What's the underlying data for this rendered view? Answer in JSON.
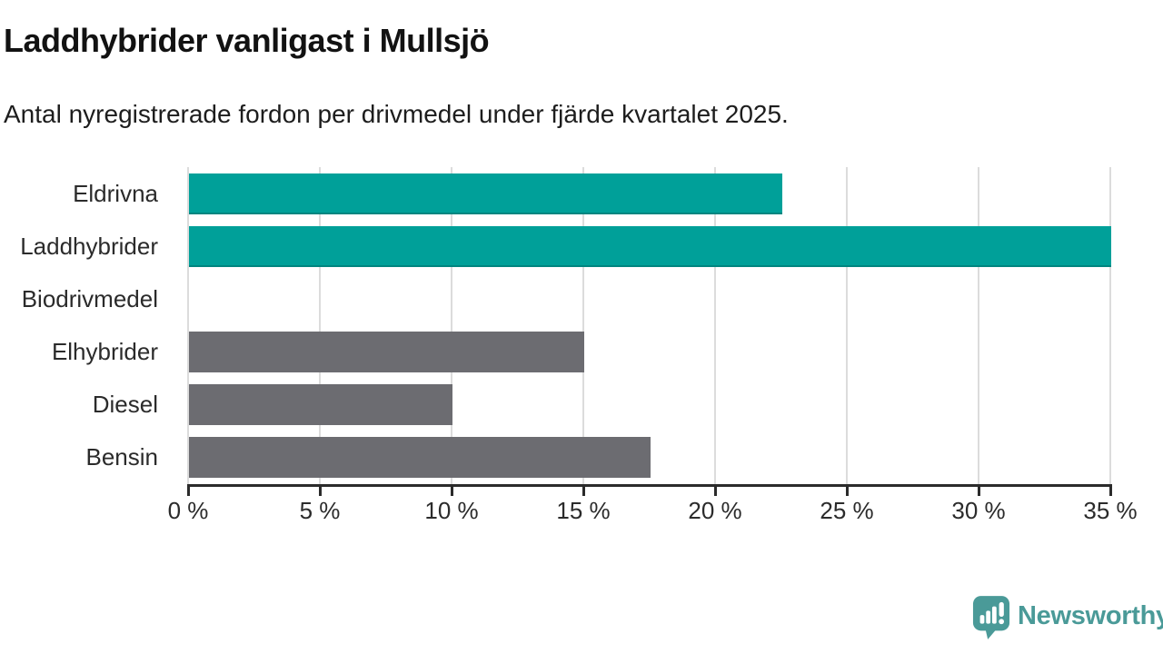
{
  "chart_data": {
    "type": "bar",
    "orientation": "horizontal",
    "title": "Laddhybrider vanligast i Mullsjö",
    "subtitle": "Antal nyregistrerade fordon per drivmedel under fjärde kvartalet 2025.",
    "categories": [
      "Eldrivna",
      "Laddhybrider",
      "Biodrivmedel",
      "Elhybrider",
      "Diesel",
      "Bensin"
    ],
    "values": [
      22.5,
      35,
      0,
      15,
      10,
      17.5
    ],
    "unit": "%",
    "xlim": [
      0,
      35
    ],
    "x_tick_values": [
      0,
      5,
      10,
      15,
      20,
      25,
      30,
      35
    ],
    "x_tick_labels": [
      "0 %",
      "5 %",
      "10 %",
      "15 %",
      "20 %",
      "25 %",
      "30 %",
      "35 %"
    ],
    "grid": true,
    "legend": "none",
    "accent_color": "#00a099",
    "default_color": "#6c6c71",
    "bar_colors": [
      "#00a099",
      "#00a099",
      "#6c6c71",
      "#6c6c71",
      "#6c6c71",
      "#6c6c71"
    ],
    "gridline_color": "#dcdcdc",
    "axis_color": "#2b2b2b"
  },
  "branding": {
    "logo_text": "Newsworthy",
    "logo_color": "#4a9a98",
    "logo_icon": "speech-bubble-bar-chart-icon"
  }
}
